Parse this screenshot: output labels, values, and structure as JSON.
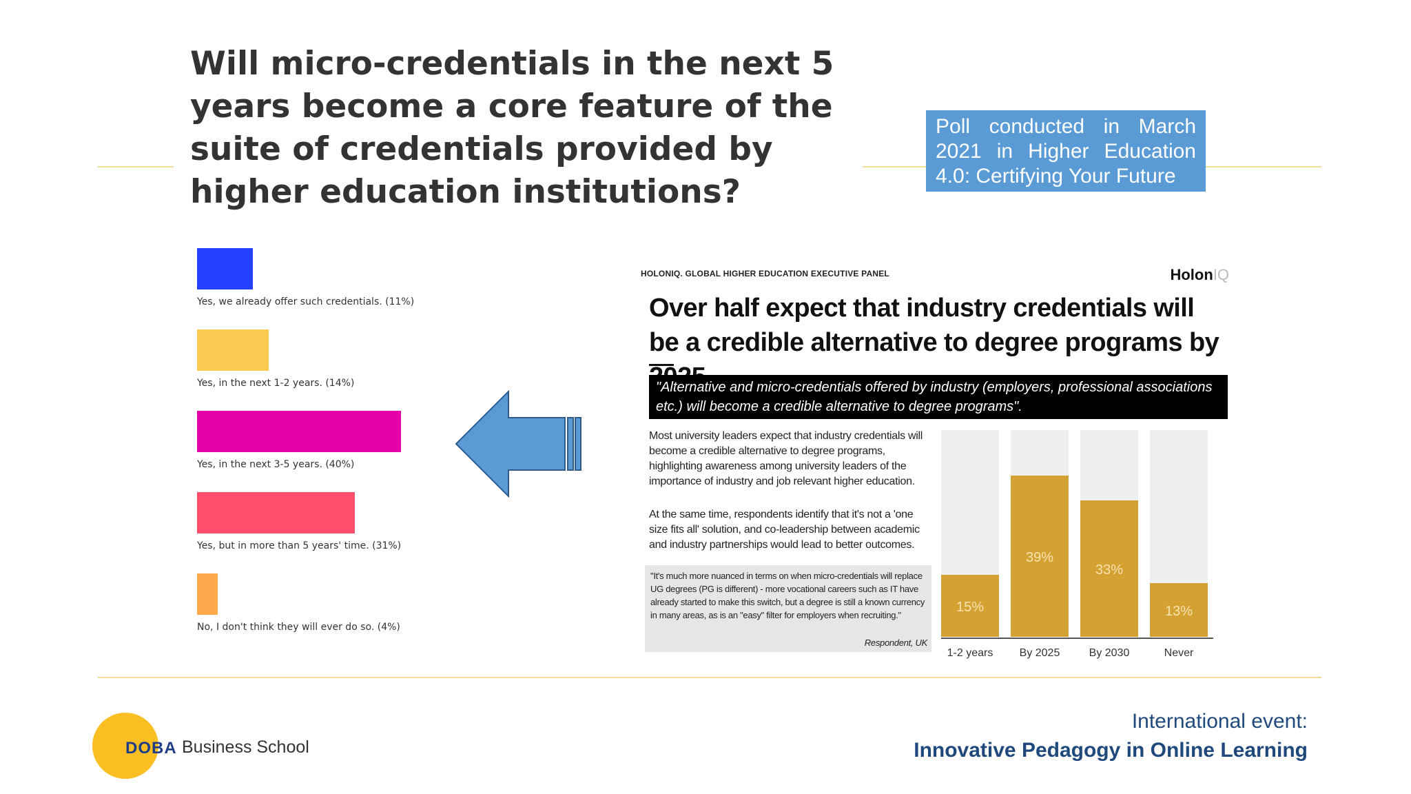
{
  "slide": {
    "title": "Will micro-credentials in the next 5 years become a core feature of the suite of credentials provided by higher education institutions?",
    "poll_note": "Poll conducted in March 2021 in Higher Education 4.0: Certifying Your Future"
  },
  "chart_data": [
    {
      "type": "bar",
      "orientation": "horizontal",
      "categories": [
        "Yes, we already offer such credentials.",
        "Yes, in the next 1-2 years.",
        "Yes, in the next 3-5 years.",
        "Yes, but in more than 5 years' time.",
        "No, I don't think they will ever do so."
      ],
      "labels": [
        "Yes, we already offer such credentials. (11%)",
        "Yes, in the next 1-2 years. (14%)",
        "Yes, in the next 3-5 years. (40%)",
        "Yes, but in more than 5 years' time. (31%)",
        "No, I don't think they will ever do so. (4%)"
      ],
      "values": [
        11,
        14,
        40,
        31,
        4
      ],
      "colors": [
        "#2540ff",
        "#fecb52",
        "#e600a8",
        "#ff4f6d",
        "#ffa94d"
      ],
      "unit": "%"
    },
    {
      "type": "bar",
      "categories": [
        "1-2 years",
        "By 2025",
        "By 2030",
        "Never"
      ],
      "values": [
        15,
        39,
        33,
        13
      ],
      "data_labels": [
        "15%",
        "39%",
        "33%",
        "13%"
      ],
      "ylim": [
        0,
        50
      ],
      "color": "#d4a133",
      "background_color": "#efefef"
    }
  ],
  "panel": {
    "brand": "HOLONIQ. GLOBAL HIGHER EDUCATION EXECUTIVE PANEL",
    "logo_main": "Holon",
    "logo_accent": "IQ",
    "headline": "Over half expect that industry credentials will be a credible alternative to degree programs by 2025.",
    "quote_banner": "\"Alternative and micro-credentials offered by industry (employers, professional associations etc.) will become a credible alternative to degree programs\".",
    "para1": "Most university leaders expect that industry credentials will become a credible alternative to degree programs, highlighting awareness among university leaders of the importance of industry and job relevant higher education.",
    "para2": "At the same time, respondents identify that it's not a 'one size fits all' solution, and co-leadership between academic and industry partnerships would lead to better outcomes.",
    "respondent_quote": "\"It's much more nuanced in terms on when micro-credentials will replace UG degrees (PG is different) - more vocational careers such as IT have already started to make this switch, but a degree is still a known currency in many areas, as is an \"easy\" filter for employers when recruiting.\"",
    "respondent": "Respondent, UK"
  },
  "footer": {
    "event_line1": "International event:",
    "event_line2": "Innovative Pedagogy in Online Learning",
    "logo_name": "DOBA",
    "logo_school": "Business School"
  },
  "colors": {
    "arrow_fill": "#5b9bd5",
    "accent_line": "#f2dc95",
    "poll_box": "#5b9bd5",
    "footer_text": "#1f497d"
  }
}
